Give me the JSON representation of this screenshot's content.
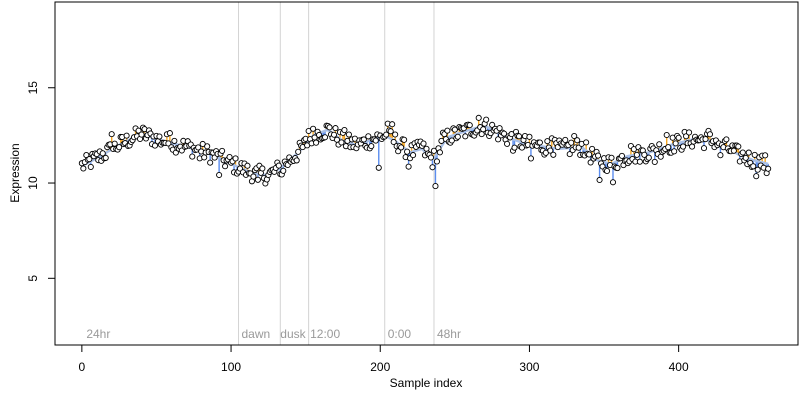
{
  "chart_data": {
    "type": "scatter",
    "title": "",
    "xlabel": "Sample index",
    "ylabel": "Expression",
    "xlim": [
      -18,
      480
    ],
    "ylim": [
      1.5,
      19.5
    ],
    "x_ticks": [
      "0",
      "100",
      "200",
      "300",
      "400"
    ],
    "y_ticks": [
      "5",
      "10",
      "15"
    ],
    "grid": false,
    "legend": "none",
    "colors": {
      "point_fill": "#ffffff",
      "point_stroke": "#000000",
      "bar_above": "#f5a623",
      "bar_below": "#5b8def",
      "trend": "#aac0e6",
      "vline": "#d3d3d3",
      "annotation": "#9a9a9a"
    },
    "vertical_lines": [
      105,
      133,
      152,
      203,
      236
    ],
    "annotations": [
      {
        "x": 3,
        "text": "24hr"
      },
      {
        "x": 107,
        "text": "dawn"
      },
      {
        "x": 133,
        "text": "dusk"
      },
      {
        "x": 153,
        "text": "12:00"
      },
      {
        "x": 205,
        "text": "0:00"
      },
      {
        "x": 238,
        "text": "48hr"
      }
    ],
    "trend_knots": [
      [
        0,
        10.9
      ],
      [
        10,
        11.3
      ],
      [
        25,
        12.0
      ],
      [
        40,
        12.6
      ],
      [
        50,
        12.3
      ],
      [
        60,
        12.1
      ],
      [
        75,
        11.8
      ],
      [
        90,
        11.4
      ],
      [
        100,
        11.0
      ],
      [
        115,
        10.5
      ],
      [
        125,
        10.4
      ],
      [
        135,
        10.9
      ],
      [
        145,
        11.6
      ],
      [
        155,
        12.5
      ],
      [
        165,
        12.8
      ],
      [
        175,
        12.2
      ],
      [
        185,
        12.0
      ],
      [
        195,
        12.3
      ],
      [
        203,
        12.5
      ],
      [
        210,
        12.2
      ],
      [
        220,
        11.6
      ],
      [
        228,
        11.8
      ],
      [
        235,
        11.2
      ],
      [
        245,
        12.4
      ],
      [
        260,
        12.8
      ],
      [
        270,
        13.0
      ],
      [
        285,
        12.4
      ],
      [
        300,
        12.0
      ],
      [
        320,
        11.8
      ],
      [
        335,
        11.9
      ],
      [
        345,
        11.2
      ],
      [
        355,
        11.0
      ],
      [
        365,
        11.4
      ],
      [
        380,
        11.6
      ],
      [
        395,
        12.0
      ],
      [
        410,
        12.3
      ],
      [
        425,
        12.2
      ],
      [
        440,
        11.5
      ],
      [
        450,
        11.2
      ],
      [
        460,
        11.0
      ]
    ],
    "dips": [
      [
        20,
        0.8
      ],
      [
        59,
        0.5
      ],
      [
        79,
        -0.4
      ],
      [
        92,
        -0.9
      ],
      [
        118,
        -0.3
      ],
      [
        134,
        -0.4
      ],
      [
        152,
        0.5
      ],
      [
        176,
        0.6
      ],
      [
        199,
        -1.6
      ],
      [
        205,
        0.7
      ],
      [
        208,
        0.8
      ],
      [
        219,
        -0.8
      ],
      [
        227,
        0.4
      ],
      [
        237,
        -1.6
      ],
      [
        242,
        0.6
      ],
      [
        266,
        0.5
      ],
      [
        289,
        -0.6
      ],
      [
        301,
        -0.7
      ],
      [
        315,
        0.5
      ],
      [
        330,
        0.6
      ],
      [
        347,
        -1.0
      ],
      [
        356,
        -1.0
      ],
      [
        368,
        0.5
      ],
      [
        384,
        -0.6
      ],
      [
        392,
        0.6
      ],
      [
        404,
        0.5
      ],
      [
        420,
        0.5
      ],
      [
        428,
        -0.6
      ],
      [
        452,
        -0.8
      ],
      [
        459,
        -0.5
      ]
    ]
  }
}
